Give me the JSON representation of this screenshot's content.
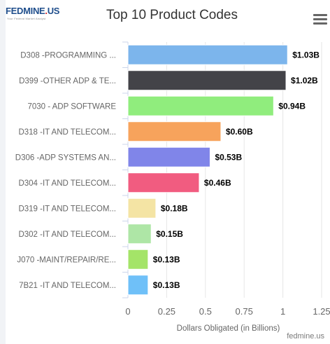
{
  "header": {
    "logo_text": "FEDMINE.US",
    "tagline": "Your Federal Market Analyst"
  },
  "menu_icon": "hamburger-menu-icon",
  "credit": "fedmine.us",
  "chart_data": {
    "type": "bar",
    "orientation": "horizontal",
    "title": "Top 10 Product Codes",
    "xlabel": "Dollars Obligated (in Billions)",
    "ylabel": "",
    "xlim": [
      0,
      1.25
    ],
    "xticks": [
      "0",
      "0.25",
      "0.5",
      "0.75",
      "1",
      "1.25"
    ],
    "grid": true,
    "categories": [
      "D308 -PROGRAMMING ...",
      "D399 -OTHER ADP & TE...",
      "7030 - ADP SOFTWARE",
      "D318 -IT AND TELECOM...",
      "D306 -ADP SYSTEMS AN...",
      "D304 -IT AND TELECOM...",
      "D319 -IT AND TELECOM...",
      "D302 -IT AND TELECOM...",
      "J070 -MAINT/REPAIR/RE...",
      "7B21 -IT AND TELECOM..."
    ],
    "values": [
      1.03,
      1.02,
      0.94,
      0.6,
      0.53,
      0.46,
      0.18,
      0.15,
      0.13,
      0.13
    ],
    "value_labels": [
      "$1.03B",
      "$1.02B",
      "$0.94B",
      "$0.60B",
      "$0.53B",
      "$0.46B",
      "$0.18B",
      "$0.15B",
      "$0.13B",
      "$0.13B"
    ],
    "colors": [
      "#7cb5ec",
      "#434348",
      "#90ed7d",
      "#f7a35c",
      "#8085e9",
      "#f15c80",
      "#f4e4a4",
      "#aee6a6",
      "#a4e468",
      "#6fc0f8"
    ]
  }
}
